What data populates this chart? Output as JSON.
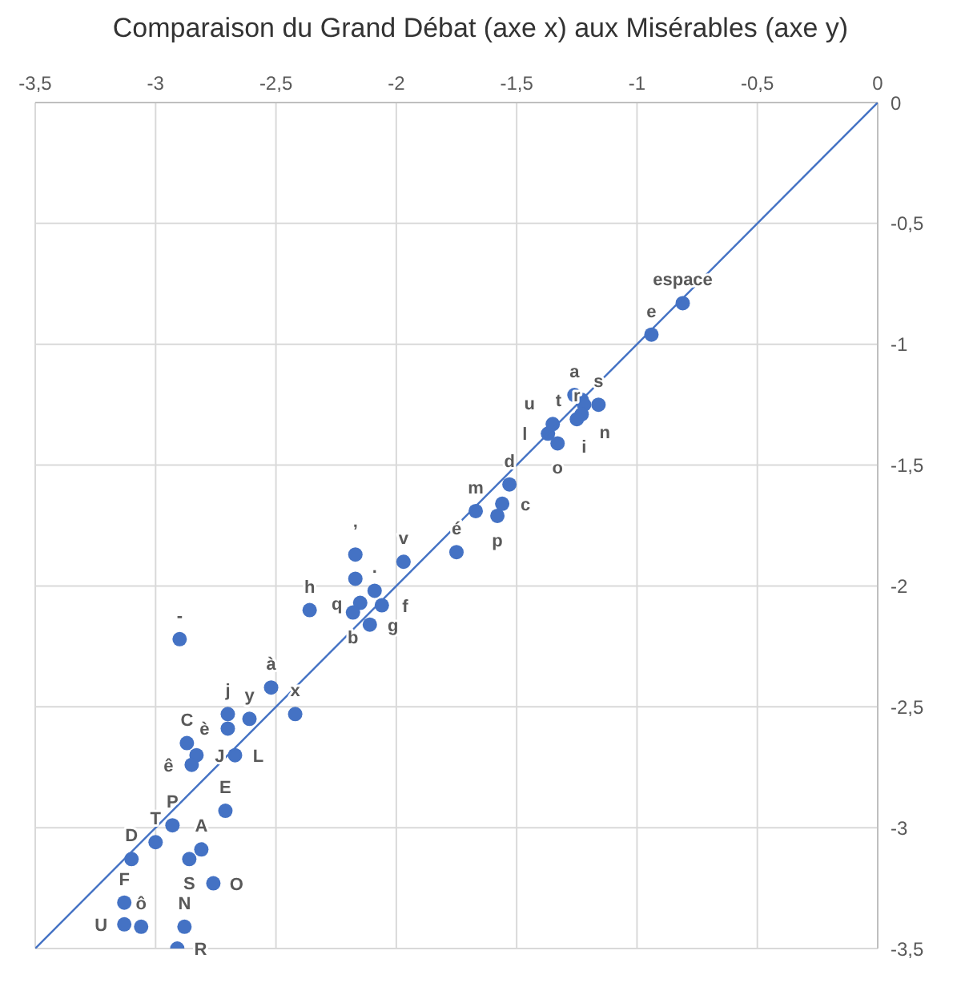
{
  "chart_data": {
    "type": "scatter",
    "title": "Comparaison du Grand Débat (axe x) aux Misérables (axe y)",
    "xlim": [
      -3.5,
      0
    ],
    "ylim": [
      -3.5,
      0
    ],
    "xticks": [
      {
        "value": -3.5,
        "label": "-3,5"
      },
      -3,
      {
        "value": -2.5,
        "label": "-2,5"
      },
      -2,
      {
        "value": -1.5,
        "label": "-1,5"
      },
      -1,
      {
        "value": -0.5,
        "label": "-0,5"
      },
      0
    ],
    "yticks": [
      {
        "value": -3.5,
        "label": "-3,5"
      },
      -3,
      {
        "value": -2.5,
        "label": "-2,5"
      },
      -2,
      {
        "value": -1.5,
        "label": "-1,5"
      },
      -1,
      {
        "value": -0.5,
        "label": "-0,5"
      },
      0
    ],
    "grid": true,
    "marker": "circle",
    "series": [
      {
        "type": "scatter",
        "color": "#4472c4",
        "x": [
          -0.81,
          -0.94,
          -1.16,
          -1.26,
          -1.23,
          -1.22,
          -1.23,
          -1.25,
          -1.37,
          -1.35,
          -1.33,
          -1.53,
          -1.56,
          -1.58,
          -1.67,
          -1.75,
          -1.97,
          -2.17,
          -2.17,
          -2.09,
          -2.06,
          -2.15,
          -2.18,
          -2.11,
          -2.36,
          -2.52,
          -2.42,
          -2.61,
          -2.9,
          -2.7,
          -2.7,
          -2.87,
          -2.83,
          -2.85,
          -2.67,
          -2.71,
          -2.93,
          -3.0,
          -3.1,
          -2.81,
          -2.86,
          -2.76,
          -3.13,
          -3.13,
          -3.06,
          -2.88,
          -2.91
        ],
        "values": [
          -0.83,
          -0.96,
          -1.25,
          -1.21,
          -1.23,
          -1.25,
          -1.29,
          -1.31,
          -1.37,
          -1.33,
          -1.41,
          -1.58,
          -1.66,
          -1.71,
          -1.69,
          -1.86,
          -1.9,
          -1.87,
          -1.97,
          -2.02,
          -2.08,
          -2.07,
          -2.11,
          -2.16,
          -2.1,
          -2.42,
          -2.53,
          -2.55,
          -2.22,
          -2.53,
          -2.59,
          -2.65,
          -2.7,
          -2.74,
          -2.7,
          -2.93,
          -2.99,
          -3.06,
          -3.13,
          -3.09,
          -3.13,
          -3.23,
          -3.31,
          -3.4,
          -3.41,
          -3.41,
          -3.5
        ],
        "value_labels": [
          "espace",
          "e",
          "s",
          "a",
          "t",
          "i",
          "n",
          "r",
          "l",
          "u",
          "o",
          "d",
          "c",
          "p",
          "m",
          "é",
          "v",
          "’",
          null,
          ".",
          "f",
          "q",
          "b",
          "g",
          "h",
          "à",
          "x",
          "y",
          "-",
          "j",
          "è",
          "C",
          "J",
          "ê",
          "L",
          "E",
          "P",
          "T",
          "D",
          "A",
          "S",
          "O",
          "F",
          "U",
          "ô",
          "N",
          "R"
        ]
      },
      {
        "type": "line",
        "color": "#4472c4",
        "x": [
          -3.5,
          0
        ],
        "values": [
          -3.5,
          0
        ],
        "marker": "none"
      }
    ]
  }
}
